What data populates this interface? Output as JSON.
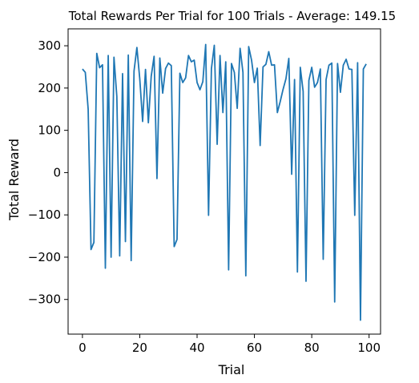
{
  "chart_data": {
    "type": "line",
    "title": "Total Rewards Per Trial for 100 Trials - Average: 149.15",
    "xlabel": "Trial",
    "ylabel": "Total Reward",
    "xlim": [
      -5,
      104
    ],
    "ylim": [
      -382,
      340
    ],
    "xticks": [
      0,
      20,
      40,
      60,
      80,
      100
    ],
    "yticks": [
      -300,
      -200,
      -100,
      0,
      100,
      200,
      300
    ],
    "xtick_labels": [
      "0",
      "20",
      "40",
      "60",
      "80",
      "100"
    ],
    "ytick_labels": [
      "−300",
      "−200",
      "−100",
      "0",
      "100",
      "200",
      "300"
    ],
    "grid": false,
    "legend": "none",
    "line_color": "#1f77b4",
    "series": [
      {
        "x": [
          0,
          1,
          2,
          3,
          4,
          5,
          6,
          7,
          8,
          9,
          10,
          11,
          12,
          13,
          14,
          15,
          16,
          17,
          18,
          19,
          20,
          21,
          22,
          23,
          24,
          25,
          26,
          27,
          28,
          29,
          30,
          31,
          32,
          33,
          34,
          35,
          36,
          37,
          38,
          39,
          40,
          41,
          42,
          43,
          44,
          45,
          46,
          47,
          48,
          49,
          50,
          51,
          52,
          53,
          54,
          55,
          56,
          57,
          58,
          59,
          60,
          61,
          62,
          63,
          64,
          65,
          66,
          67,
          68,
          69,
          70,
          71,
          72,
          73,
          74,
          75,
          76,
          77,
          78,
          79,
          80,
          81,
          82,
          83,
          84,
          85,
          86,
          87,
          88,
          89,
          90,
          91,
          92,
          93,
          94,
          95,
          96,
          97,
          98,
          99
        ],
        "values": [
          245,
          237,
          150,
          -182,
          -165,
          282,
          248,
          255,
          -226,
          277,
          -200,
          273,
          180,
          -197,
          234,
          -163,
          278,
          -208,
          240,
          296,
          222,
          121,
          244,
          118,
          228,
          275,
          -14,
          271,
          188,
          246,
          259,
          253,
          -175,
          -158,
          235,
          213,
          224,
          277,
          262,
          266,
          213,
          196,
          215,
          303,
          -101,
          246,
          301,
          67,
          277,
          142,
          262,
          -230,
          258,
          237,
          152,
          294,
          237,
          -244,
          298,
          266,
          213,
          247,
          64,
          250,
          256,
          286,
          254,
          255,
          142,
          168,
          197,
          222,
          270,
          -4,
          220,
          -235,
          249,
          192,
          -257,
          218,
          249,
          202,
          213,
          245,
          -205,
          220,
          254,
          259,
          -306,
          258,
          190,
          254,
          268,
          245,
          244,
          -101,
          260,
          -349,
          245,
          257
        ]
      }
    ]
  }
}
